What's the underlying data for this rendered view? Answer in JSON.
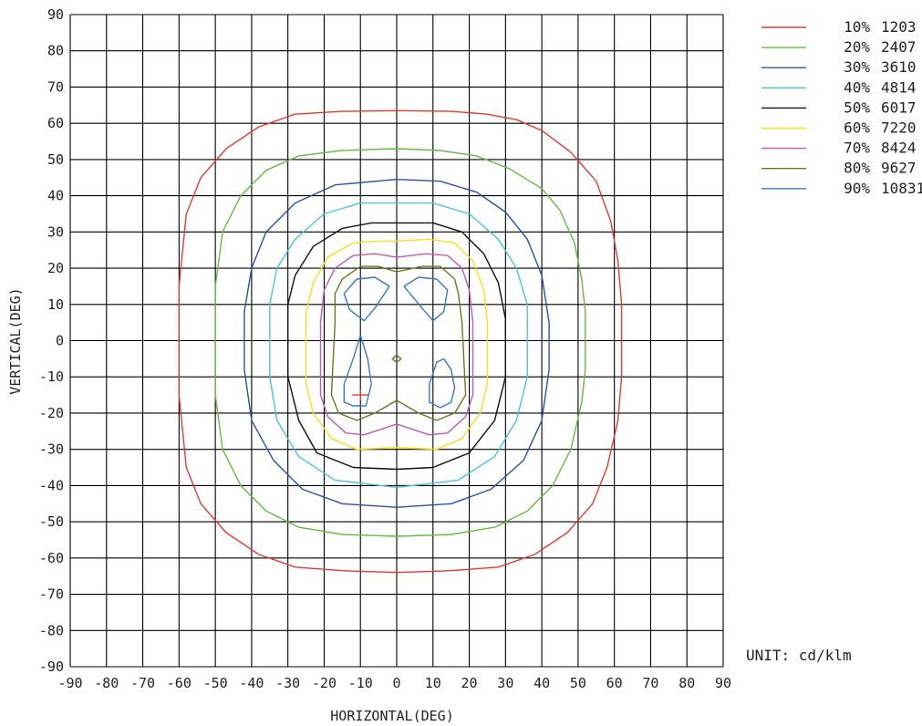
{
  "chart_data": {
    "type": "contour",
    "xlabel": "HORIZONTAL(DEG)",
    "ylabel": "VERTICAL(DEG)",
    "unit": "UNIT: cd/klm",
    "xlim": [
      -90,
      90
    ],
    "ylim": [
      -90,
      90
    ],
    "x_ticks": [
      -90,
      -80,
      -70,
      -60,
      -50,
      -40,
      -30,
      -20,
      -10,
      0,
      10,
      20,
      30,
      40,
      50,
      60,
      70,
      80,
      90
    ],
    "y_ticks": [
      90,
      80,
      70,
      60,
      50,
      40,
      30,
      20,
      10,
      0,
      -10,
      -20,
      -30,
      -40,
      -50,
      -60,
      -70,
      -80,
      -90
    ],
    "grid": true,
    "legend_position": "right",
    "max_marker": {
      "x": -10,
      "y": -15,
      "color": "#e53935"
    },
    "series": [
      {
        "name": "10% 1203",
        "percent": "10%",
        "value": "1203",
        "color": "#e53935",
        "contours": [
          [
            [
              0,
              63.5
            ],
            [
              15,
              63.3
            ],
            [
              25,
              62.5
            ],
            [
              33,
              61
            ],
            [
              40,
              58
            ],
            [
              48,
              52
            ],
            [
              55,
              44
            ],
            [
              59,
              33
            ],
            [
              61,
              22
            ],
            [
              62,
              10
            ],
            [
              62,
              0
            ],
            [
              62,
              -10
            ],
            [
              61,
              -22
            ],
            [
              58,
              -35
            ],
            [
              54,
              -45
            ],
            [
              47,
              -53
            ],
            [
              38,
              -59
            ],
            [
              28,
              -62.5
            ],
            [
              15,
              -63.5
            ],
            [
              0,
              -64
            ],
            [
              -15,
              -63.5
            ],
            [
              -28,
              -62.5
            ],
            [
              -38,
              -59
            ],
            [
              -47,
              -53
            ],
            [
              -54,
              -45
            ],
            [
              -58,
              -35
            ],
            [
              -60,
              -15
            ],
            [
              -60,
              15
            ],
            [
              -58,
              35
            ],
            [
              -54,
              45
            ],
            [
              -47,
              53
            ],
            [
              -38,
              59
            ],
            [
              -28,
              62.5
            ],
            [
              -15,
              63.3
            ],
            [
              0,
              63.5
            ]
          ]
        ]
      },
      {
        "name": "20% 2407",
        "percent": "20%",
        "value": "2407",
        "color": "#66bb44",
        "contours": [
          [
            [
              0,
              53
            ],
            [
              12,
              52.5
            ],
            [
              22,
              51
            ],
            [
              31,
              47.5
            ],
            [
              40,
              42
            ],
            [
              45,
              36
            ],
            [
              49,
              27
            ],
            [
              51,
              17
            ],
            [
              52,
              8
            ],
            [
              52,
              -8
            ],
            [
              51,
              -17
            ],
            [
              48,
              -30
            ],
            [
              43,
              -40
            ],
            [
              36,
              -47
            ],
            [
              27,
              -51.5
            ],
            [
              15,
              -53.5
            ],
            [
              0,
              -54
            ],
            [
              -15,
              -53.5
            ],
            [
              -27,
              -51.5
            ],
            [
              -36,
              -47
            ],
            [
              -43,
              -40
            ],
            [
              -48,
              -30
            ],
            [
              -50,
              -15
            ],
            [
              -50,
              15
            ],
            [
              -48,
              30
            ],
            [
              -43,
              40
            ],
            [
              -36,
              47
            ],
            [
              -27,
              51
            ],
            [
              -15,
              52.5
            ],
            [
              0,
              53
            ]
          ]
        ]
      },
      {
        "name": "30% 3610",
        "percent": "30%",
        "value": "3610",
        "color": "#2c4fa8",
        "contours": [
          [
            [
              0,
              44.5
            ],
            [
              12,
              44
            ],
            [
              22,
              41
            ],
            [
              30,
              35.5
            ],
            [
              36,
              28
            ],
            [
              40,
              18
            ],
            [
              42,
              5
            ],
            [
              42,
              -8
            ],
            [
              40,
              -22
            ],
            [
              35,
              -33
            ],
            [
              26,
              -41
            ],
            [
              15,
              -45
            ],
            [
              0,
              -46
            ],
            [
              -15,
              -45
            ],
            [
              -26,
              -41
            ],
            [
              -34,
              -33
            ],
            [
              -40,
              -22
            ],
            [
              -42,
              -8
            ],
            [
              -42,
              8
            ],
            [
              -40,
              20
            ],
            [
              -36,
              30
            ],
            [
              -28,
              38
            ],
            [
              -17,
              43
            ],
            [
              0,
              44.5
            ]
          ]
        ]
      },
      {
        "name": "40% 4814",
        "percent": "40%",
        "value": "4814",
        "color": "#4dc3d9",
        "contours": [
          [
            [
              0,
              38
            ],
            [
              10,
              38
            ],
            [
              20,
              35
            ],
            [
              28,
              28
            ],
            [
              33,
              20
            ],
            [
              36,
              10
            ],
            [
              36,
              -10
            ],
            [
              33,
              -22
            ],
            [
              27,
              -32
            ],
            [
              17,
              -38.5
            ],
            [
              0,
              -40.5
            ],
            [
              -17,
              -38.5
            ],
            [
              -27,
              -32
            ],
            [
              -33,
              -22
            ],
            [
              -35,
              -10
            ],
            [
              -35,
              10
            ],
            [
              -33,
              20
            ],
            [
              -28,
              28
            ],
            [
              -20,
              35
            ],
            [
              -10,
              38
            ],
            [
              0,
              38
            ]
          ]
        ]
      },
      {
        "name": "50% 6017",
        "percent": "50%",
        "value": "6017",
        "color": "#111111",
        "contours": [
          [
            [
              0,
              32.5
            ],
            [
              10,
              32.5
            ],
            [
              18,
              30
            ],
            [
              24,
              24
            ],
            [
              28,
              16
            ],
            [
              30,
              6
            ],
            [
              30,
              -10
            ],
            [
              27,
              -22
            ],
            [
              20,
              -31
            ],
            [
              10,
              -35
            ],
            [
              0,
              -35.5
            ],
            [
              -12,
              -35
            ],
            [
              -22,
              -31
            ],
            [
              -27,
              -22
            ],
            [
              -30,
              -10
            ],
            [
              -30,
              10
            ],
            [
              -28,
              18
            ],
            [
              -23,
              26
            ],
            [
              -15,
              31
            ],
            [
              -7,
              32.5
            ],
            [
              0,
              32.5
            ]
          ]
        ]
      },
      {
        "name": "60% 7220",
        "percent": "60%",
        "value": "7220",
        "color": "#f2e31a",
        "contours": [
          [
            [
              0,
              27.5
            ],
            [
              9,
              28
            ],
            [
              16,
              27
            ],
            [
              21,
              22
            ],
            [
              24,
              14
            ],
            [
              25,
              5
            ],
            [
              25,
              -12
            ],
            [
              23,
              -20
            ],
            [
              18,
              -27
            ],
            [
              11,
              -30
            ],
            [
              0,
              -29.5
            ],
            [
              -11,
              -30
            ],
            [
              -18,
              -27
            ],
            [
              -23,
              -20
            ],
            [
              -25,
              -12
            ],
            [
              -25,
              8
            ],
            [
              -23,
              16
            ],
            [
              -19,
              23
            ],
            [
              -12,
              27
            ],
            [
              -5,
              27.5
            ],
            [
              0,
              27.5
            ]
          ]
        ]
      },
      {
        "name": "70% 8424",
        "percent": "70%",
        "value": "8424",
        "color": "#c05ab5",
        "contours": [
          [
            [
              0,
              23
            ],
            [
              8,
              24
            ],
            [
              14,
              23.5
            ],
            [
              18,
              20
            ],
            [
              20,
              14
            ],
            [
              21,
              5
            ],
            [
              21,
              -15
            ],
            [
              19,
              -21
            ],
            [
              14,
              -25.5
            ],
            [
              9,
              -26
            ],
            [
              0,
              -23
            ],
            [
              -9,
              -26
            ],
            [
              -14,
              -25.5
            ],
            [
              -19,
              -21
            ],
            [
              -21,
              -15
            ],
            [
              -21,
              5
            ],
            [
              -20,
              14
            ],
            [
              -17,
              20
            ],
            [
              -12,
              23.5
            ],
            [
              -6,
              24
            ],
            [
              0,
              23
            ]
          ]
        ]
      },
      {
        "name": "80% 9627",
        "percent": "80%",
        "value": "9627",
        "color": "#6b7a1f",
        "contours": [
          [
            [
              0,
              19
            ],
            [
              7,
              20.5
            ],
            [
              12,
              20.5
            ],
            [
              16,
              17
            ],
            [
              17,
              13
            ],
            [
              18,
              5
            ],
            [
              19,
              -15
            ],
            [
              16,
              -20
            ],
            [
              11,
              -22
            ],
            [
              6,
              -20
            ],
            [
              0,
              -16.5
            ],
            [
              -6,
              -20
            ],
            [
              -11,
              -22
            ],
            [
              -16,
              -20
            ],
            [
              -18,
              -15
            ],
            [
              -17,
              5
            ],
            [
              -17,
              13
            ],
            [
              -15,
              17
            ],
            [
              -10,
              20.5
            ],
            [
              -5,
              20.5
            ],
            [
              0,
              19
            ]
          ],
          [
            [
              0,
              -4
            ],
            [
              1.2,
              -5
            ],
            [
              0,
              -6
            ],
            [
              -1.2,
              -5
            ],
            [
              0,
              -4
            ]
          ]
        ]
      },
      {
        "name": "90% 10831",
        "percent": "90%",
        "value": "10831",
        "color": "#3a78c9",
        "contours": [
          [
            [
              -2,
              15
            ],
            [
              -6,
              17.5
            ],
            [
              -11,
              17
            ],
            [
              -14.5,
              13
            ],
            [
              -13,
              8.5
            ],
            [
              -9,
              5.5
            ],
            [
              -6,
              9
            ],
            [
              -2,
              15
            ]
          ],
          [
            [
              2,
              15
            ],
            [
              6,
              17.5
            ],
            [
              11,
              17
            ],
            [
              14,
              14
            ],
            [
              13,
              8
            ],
            [
              10,
              5.5
            ],
            [
              7,
              9
            ],
            [
              2,
              15
            ]
          ],
          [
            [
              -10,
              1.5
            ],
            [
              -12,
              -5
            ],
            [
              -14.5,
              -12
            ],
            [
              -14.5,
              -17
            ],
            [
              -12,
              -18
            ],
            [
              -8.5,
              -18
            ],
            [
              -7,
              -12
            ],
            [
              -8,
              -5
            ],
            [
              -10,
              1.5
            ]
          ],
          [
            [
              13,
              -5
            ],
            [
              15,
              -8
            ],
            [
              16,
              -13
            ],
            [
              15,
              -17
            ],
            [
              12,
              -18.5
            ],
            [
              9,
              -17
            ],
            [
              9,
              -12
            ],
            [
              11,
              -6
            ],
            [
              13,
              -5
            ]
          ]
        ]
      }
    ]
  }
}
